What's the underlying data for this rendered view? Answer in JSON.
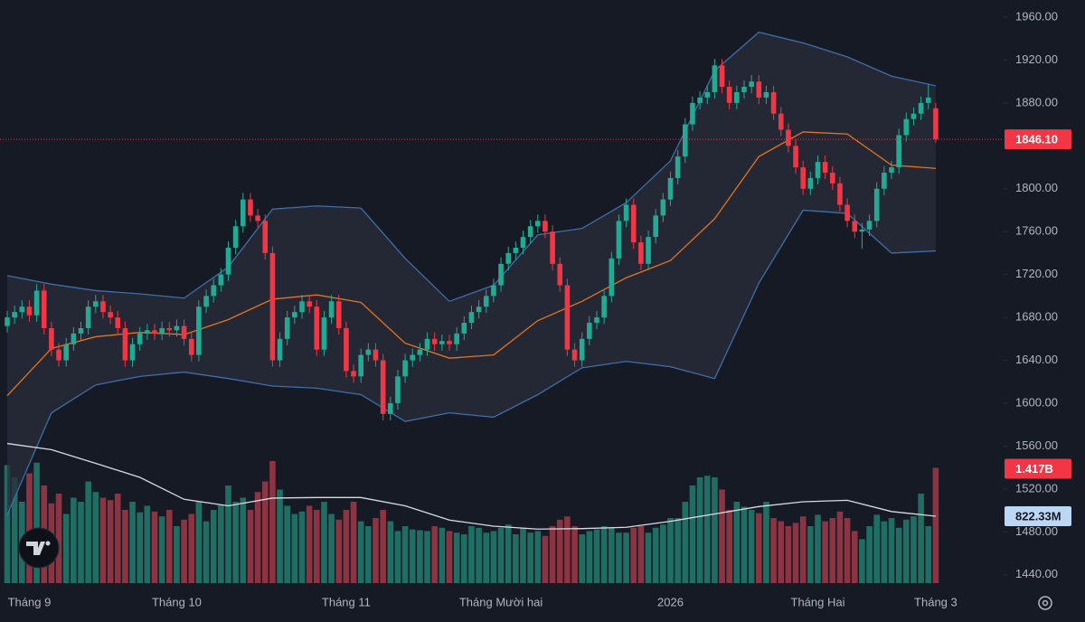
{
  "chart_data": {
    "type": "candlestick",
    "categories": [
      null,
      null,
      null,
      "Tháng 9",
      null,
      null,
      null,
      null,
      null,
      null,
      null,
      null,
      null,
      null,
      null,
      null,
      null,
      null,
      null,
      null,
      null,
      null,
      null,
      "Tháng 10",
      null,
      null,
      null,
      null,
      null,
      null,
      null,
      null,
      null,
      null,
      null,
      null,
      null,
      null,
      null,
      null,
      null,
      null,
      null,
      null,
      null,
      null,
      "Tháng 11",
      null,
      null,
      null,
      null,
      null,
      null,
      null,
      null,
      null,
      null,
      null,
      null,
      null,
      null,
      null,
      null,
      null,
      null,
      null,
      null,
      "Tháng Mười hai",
      null,
      null,
      null,
      null,
      null,
      null,
      null,
      null,
      null,
      null,
      null,
      null,
      null,
      null,
      null,
      null,
      null,
      null,
      null,
      null,
      null,
      null,
      "2026",
      null,
      null,
      null,
      null,
      null,
      null,
      null,
      null,
      null,
      null,
      null,
      null,
      null,
      null,
      null,
      null,
      null,
      null,
      null,
      "Tháng Hai",
      null,
      null,
      null,
      null,
      null,
      null,
      null,
      null,
      null,
      null,
      null,
      null,
      null,
      null,
      null,
      "Tháng 3"
    ],
    "open": [
      1672,
      1680,
      1685,
      1690,
      1682,
      1705,
      1670,
      1650,
      1640,
      1655,
      1665,
      1670,
      1690,
      1695,
      1685,
      1680,
      1670,
      1640,
      1655,
      1665,
      1668,
      1665,
      1670,
      1668,
      1672,
      1660,
      1645,
      1690,
      1700,
      1710,
      1720,
      1745,
      1765,
      1790,
      1775,
      1770,
      1740,
      1640,
      1660,
      1680,
      1685,
      1695,
      1690,
      1650,
      1680,
      1695,
      1670,
      1630,
      1625,
      1645,
      1650,
      1640,
      1590,
      1600,
      1625,
      1640,
      1645,
      1650,
      1660,
      1655,
      1658,
      1655,
      1665,
      1675,
      1685,
      1690,
      1700,
      1710,
      1730,
      1740,
      1745,
      1755,
      1765,
      1770,
      1760,
      1730,
      1710,
      1650,
      1640,
      1660,
      1675,
      1680,
      1700,
      1735,
      1770,
      1785,
      1750,
      1730,
      1755,
      1775,
      1790,
      1810,
      1830,
      1860,
      1880,
      1885,
      1890,
      1915,
      1895,
      1880,
      1890,
      1895,
      1900,
      1885,
      1890,
      1870,
      1855,
      1840,
      1820,
      1800,
      1810,
      1825,
      1815,
      1805,
      1785,
      1770,
      1760,
      1762,
      1770,
      1800,
      1815,
      1820,
      1850,
      1865,
      1870,
      1880,
      1875
    ],
    "high": [
      1686,
      1691,
      1696,
      1696,
      1711,
      1711,
      1676,
      1656,
      1661,
      1671,
      1676,
      1696,
      1701,
      1701,
      1691,
      1686,
      1676,
      1661,
      1671,
      1674,
      1674,
      1676,
      1676,
      1678,
      1678,
      1666,
      1696,
      1706,
      1716,
      1726,
      1751,
      1771,
      1796,
      1796,
      1781,
      1776,
      1746,
      1666,
      1686,
      1691,
      1701,
      1701,
      1696,
      1686,
      1701,
      1701,
      1676,
      1636,
      1651,
      1656,
      1656,
      1646,
      1606,
      1631,
      1646,
      1651,
      1656,
      1666,
      1666,
      1664,
      1664,
      1671,
      1681,
      1691,
      1696,
      1706,
      1716,
      1736,
      1746,
      1751,
      1761,
      1771,
      1776,
      1776,
      1766,
      1736,
      1716,
      1656,
      1666,
      1681,
      1686,
      1706,
      1741,
      1776,
      1791,
      1791,
      1756,
      1761,
      1781,
      1796,
      1816,
      1836,
      1866,
      1886,
      1891,
      1896,
      1921,
      1921,
      1901,
      1896,
      1901,
      1906,
      1906,
      1896,
      1896,
      1876,
      1861,
      1846,
      1826,
      1816,
      1831,
      1831,
      1821,
      1811,
      1791,
      1776,
      1768,
      1776,
      1806,
      1821,
      1826,
      1856,
      1871,
      1876,
      1886,
      1897,
      1880
    ],
    "low": [
      1666,
      1674,
      1679,
      1676,
      1676,
      1664,
      1644,
      1634,
      1634,
      1649,
      1659,
      1664,
      1684,
      1679,
      1674,
      1664,
      1634,
      1634,
      1649,
      1659,
      1659,
      1659,
      1662,
      1662,
      1654,
      1639,
      1639,
      1684,
      1694,
      1704,
      1714,
      1739,
      1759,
      1769,
      1764,
      1734,
      1634,
      1634,
      1654,
      1674,
      1679,
      1684,
      1644,
      1644,
      1674,
      1664,
      1624,
      1619,
      1619,
      1639,
      1634,
      1584,
      1584,
      1594,
      1619,
      1634,
      1639,
      1644,
      1649,
      1649,
      1649,
      1649,
      1659,
      1669,
      1679,
      1684,
      1694,
      1704,
      1724,
      1734,
      1739,
      1749,
      1759,
      1754,
      1724,
      1704,
      1644,
      1634,
      1634,
      1654,
      1669,
      1674,
      1694,
      1729,
      1764,
      1744,
      1724,
      1724,
      1749,
      1769,
      1784,
      1804,
      1824,
      1854,
      1874,
      1879,
      1884,
      1889,
      1874,
      1874,
      1884,
      1889,
      1879,
      1879,
      1864,
      1849,
      1834,
      1814,
      1794,
      1794,
      1804,
      1809,
      1799,
      1779,
      1764,
      1754,
      1744,
      1756,
      1764,
      1794,
      1809,
      1814,
      1844,
      1859,
      1864,
      1874,
      1843
    ],
    "close": [
      1680,
      1685,
      1690,
      1682,
      1705,
      1670,
      1650,
      1640,
      1655,
      1665,
      1670,
      1690,
      1695,
      1685,
      1680,
      1670,
      1640,
      1655,
      1665,
      1668,
      1665,
      1670,
      1668,
      1672,
      1660,
      1645,
      1690,
      1700,
      1710,
      1720,
      1745,
      1765,
      1790,
      1775,
      1770,
      1740,
      1640,
      1660,
      1680,
      1685,
      1695,
      1690,
      1650,
      1680,
      1695,
      1670,
      1630,
      1625,
      1645,
      1650,
      1640,
      1590,
      1600,
      1625,
      1640,
      1645,
      1650,
      1660,
      1655,
      1658,
      1655,
      1665,
      1675,
      1685,
      1690,
      1700,
      1710,
      1730,
      1740,
      1745,
      1755,
      1765,
      1770,
      1760,
      1730,
      1710,
      1650,
      1640,
      1660,
      1675,
      1680,
      1700,
      1735,
      1770,
      1785,
      1750,
      1730,
      1755,
      1775,
      1790,
      1810,
      1830,
      1860,
      1880,
      1885,
      1890,
      1915,
      1895,
      1880,
      1890,
      1895,
      1900,
      1885,
      1890,
      1870,
      1855,
      1840,
      1820,
      1800,
      1810,
      1825,
      1815,
      1805,
      1785,
      1770,
      1760,
      1762,
      1770,
      1800,
      1815,
      1820,
      1850,
      1865,
      1870,
      1880,
      1885,
      1846.1
    ],
    "close_label": "1846.10",
    "up_color": "#22ab94",
    "down_color": "#f23645",
    "ylim": [
      1428,
      1976
    ],
    "yticks": [
      {
        "value": 1440,
        "label": "1440.00"
      },
      {
        "value": 1480,
        "label": "1480.00"
      },
      {
        "value": 1520,
        "label": "1520.00"
      },
      {
        "value": 1560,
        "label": "1560.00"
      },
      {
        "value": 1600,
        "label": "1600.00"
      },
      {
        "value": 1640,
        "label": "1640.00"
      },
      {
        "value": 1680,
        "label": "1680.00"
      },
      {
        "value": 1720,
        "label": "1720.00"
      },
      {
        "value": 1760,
        "label": "1760.00"
      },
      {
        "value": 1800,
        "label": "1800.00"
      },
      {
        "value": 1840,
        "label": "1840.00"
      },
      {
        "value": 1880,
        "label": "1880.00"
      },
      {
        "value": 1920,
        "label": "1920.00"
      },
      {
        "value": 1960,
        "label": "1960.00"
      }
    ],
    "bands": {
      "x": [
        0,
        6,
        12,
        18,
        24,
        30,
        36,
        42,
        48,
        54,
        60,
        66,
        72,
        78,
        84,
        90,
        96,
        102,
        108,
        114,
        120,
        126
      ],
      "upper": [
        1719,
        1711,
        1705,
        1702,
        1698,
        1727,
        1781,
        1784,
        1782,
        1735,
        1695,
        1710,
        1757,
        1763,
        1787,
        1826,
        1910,
        1946,
        1936,
        1923,
        1905,
        1896
      ],
      "middle": [
        1607,
        1651,
        1662,
        1666,
        1664,
        1678,
        1697,
        1701,
        1694,
        1656,
        1642,
        1645,
        1677,
        1695,
        1717,
        1733,
        1772,
        1830,
        1853,
        1851,
        1822,
        1819
      ],
      "lower": [
        1496,
        1591,
        1617,
        1625,
        1629,
        1623,
        1616,
        1614,
        1608,
        1583,
        1591,
        1587,
        1608,
        1633,
        1639,
        1634,
        1623,
        1712,
        1780,
        1777,
        1740,
        1742
      ],
      "band_color": "#3f6ea8",
      "middle_color": "#e8731c",
      "fill": "#2a2e39"
    },
    "volume": {
      "values": [
        1450,
        1300,
        1000,
        1350,
        1480,
        1200,
        980,
        1100,
        850,
        1050,
        1000,
        1250,
        1120,
        1050,
        1020,
        1100,
        900,
        1000,
        870,
        950,
        880,
        820,
        900,
        700,
        780,
        850,
        1000,
        760,
        900,
        960,
        1200,
        1000,
        1050,
        900,
        1120,
        1250,
        1500,
        1150,
        950,
        850,
        880,
        950,
        900,
        1000,
        850,
        780,
        900,
        1000,
        760,
        700,
        800,
        900,
        760,
        640,
        700,
        660,
        650,
        640,
        700,
        680,
        640,
        620,
        600,
        700,
        680,
        620,
        640,
        680,
        720,
        600,
        680,
        620,
        640,
        580,
        700,
        780,
        820,
        700,
        600,
        640,
        660,
        700,
        680,
        620,
        620,
        680,
        700,
        620,
        680,
        720,
        800,
        800,
        1000,
        1200,
        1300,
        1320,
        1300,
        1150,
        900,
        1000,
        940,
        900,
        860,
        1000,
        800,
        760,
        700,
        740,
        820,
        700,
        840,
        760,
        800,
        880,
        800,
        640,
        540,
        700,
        840,
        760,
        800,
        680,
        780,
        820,
        1100,
        700,
        1417
      ],
      "value_label": "1.417B",
      "up_color": "#1e6e64",
      "down_color": "#8c3441",
      "ma_x": [
        0,
        6,
        12,
        18,
        24,
        30,
        36,
        42,
        48,
        54,
        60,
        66,
        72,
        78,
        84,
        90,
        96,
        102,
        108,
        114,
        120,
        126
      ],
      "ma": [
        1716,
        1640,
        1472,
        1300,
        1030,
        950,
        1045,
        1052,
        1052,
        950,
        775,
        700,
        664,
        670,
        686,
        760,
        850,
        941,
        1000,
        1018,
        880,
        822.33
      ],
      "ma_label": "822.33M",
      "ma_color": "#d8dbe3"
    }
  }
}
